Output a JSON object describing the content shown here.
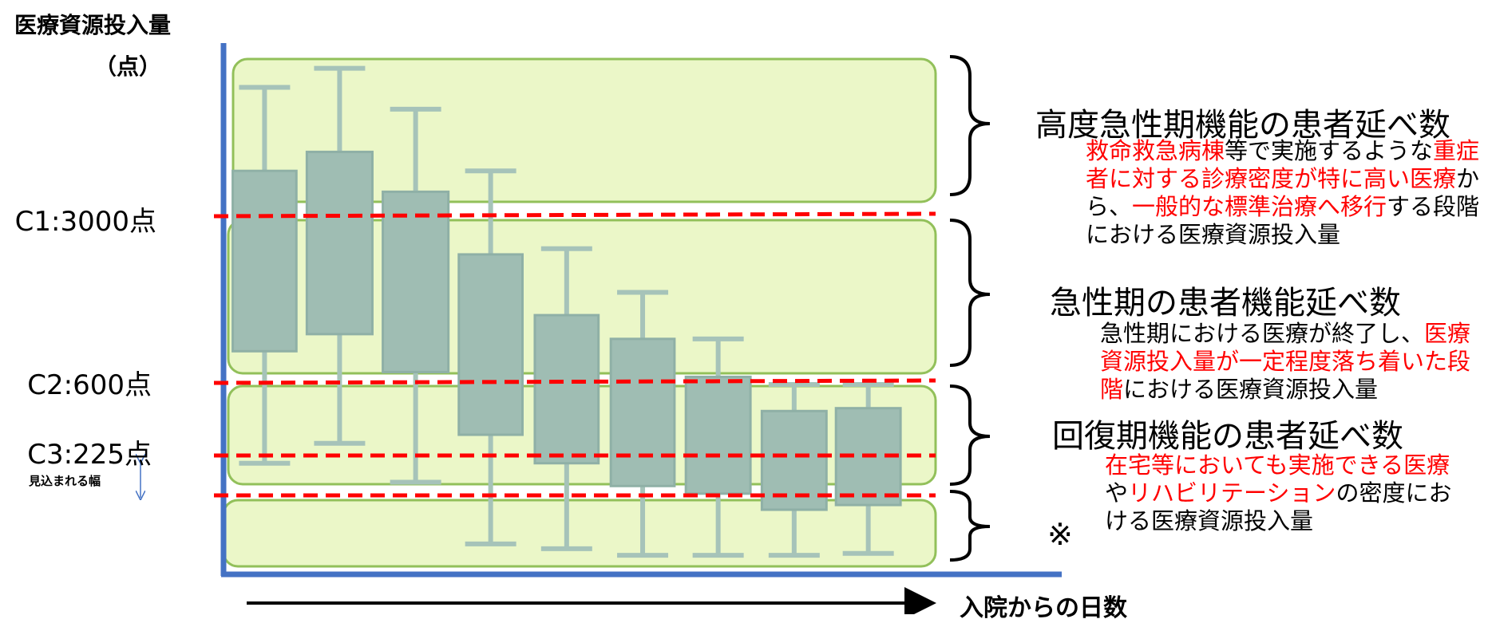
{
  "y_axis": {
    "title": "医療資源投入量",
    "unit": "（点）"
  },
  "thresholds": [
    {
      "label": "C1:3000点"
    },
    {
      "label": "C2:600点"
    },
    {
      "label": "C3:225点",
      "note": "見込まれる幅"
    }
  ],
  "x_axis": {
    "title": "入院からの日数"
  },
  "highlight_color": "#ff0000",
  "sections": [
    {
      "title": "高度急性期機能の患者延べ数",
      "description": [
        {
          "text": "救命救急病棟",
          "highlight": true
        },
        {
          "text": "等で実施するような",
          "highlight": false
        },
        {
          "text": "重症者に対する診療密度が特に高い医療",
          "highlight": true
        },
        {
          "text": "から、",
          "highlight": false
        },
        {
          "text": "一般的な標準治療へ移行",
          "highlight": true
        },
        {
          "text": "する段階における医療資源投入量",
          "highlight": false
        }
      ]
    },
    {
      "title": "急性期の患者機能延べ数",
      "description": [
        {
          "text": "急性期における医療が終了し、",
          "highlight": false
        },
        {
          "text": "医療資源投入量が一定程度落ち着いた段階",
          "highlight": true
        },
        {
          "text": "における医療資源投入量",
          "highlight": false
        }
      ]
    },
    {
      "title": "回復期機能の患者延べ数",
      "description": [
        {
          "text": "在宅等においても実施できる医療",
          "highlight": true
        },
        {
          "text": "や",
          "highlight": false
        },
        {
          "text": "リハビリテーション",
          "highlight": true
        },
        {
          "text": "の密度における医療資源投入量",
          "highlight": false
        }
      ]
    },
    {
      "title": "※"
    }
  ]
}
